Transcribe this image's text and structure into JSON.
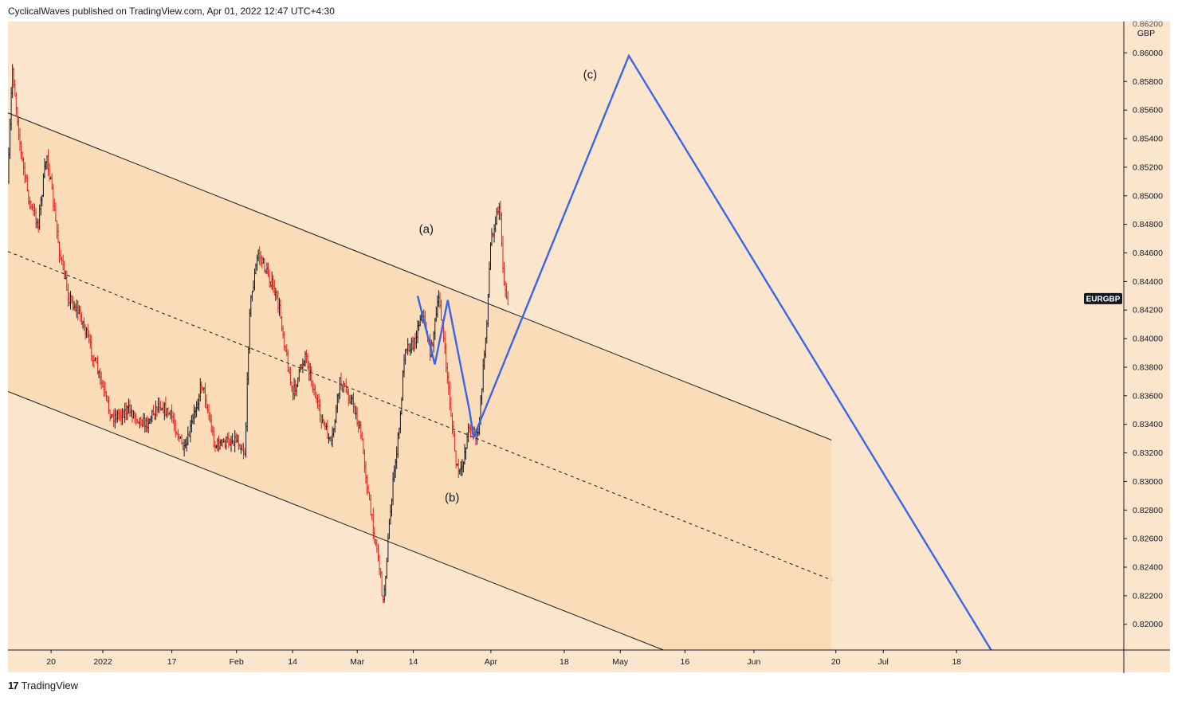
{
  "header": {
    "publisher_line": "CyclicalWaves published on TradingView.com, Apr 01, 2022 12:47 UTC+4:30"
  },
  "footer": {
    "brand": "TradingView"
  },
  "colors": {
    "plot_bg": "#fbe5cc",
    "channel_fill": "#fbdcb8",
    "candle_up": "#131722",
    "candle_down": "#e0201b",
    "wave_line": "#3a66e6",
    "axis_text": "#131722",
    "symbol_badge_bg": "#131722",
    "symbol_badge_text": "#ffffff"
  },
  "chart_data": {
    "type": "candlestick",
    "symbol": "EURGBP",
    "currency": "GBP",
    "ylim": [
      0.8182,
      0.8622
    ],
    "y_ticks": [
      "0.86200",
      "0.86000",
      "0.85800",
      "0.85600",
      "0.85400",
      "0.85200",
      "0.85000",
      "0.84800",
      "0.84600",
      "0.84400",
      "0.84200",
      "0.84000",
      "0.83800",
      "0.83600",
      "0.83400",
      "0.83200",
      "0.83000",
      "0.82800",
      "0.82600",
      "0.82400",
      "0.82200",
      "0.82000"
    ],
    "x_ticks": [
      {
        "label": "20",
        "date": "2021-12-20"
      },
      {
        "label": "2022",
        "date": "2022-01-01"
      },
      {
        "label": "17",
        "date": "2022-01-17"
      },
      {
        "label": "Feb",
        "date": "2022-02-01"
      },
      {
        "label": "14",
        "date": "2022-02-14"
      },
      {
        "label": "Mar",
        "date": "2022-03-01"
      },
      {
        "label": "14",
        "date": "2022-03-14"
      },
      {
        "label": "Apr",
        "date": "2022-04-01"
      },
      {
        "label": "18",
        "date": "2022-04-18"
      },
      {
        "label": "May",
        "date": "2022-05-01"
      },
      {
        "label": "16",
        "date": "2022-05-16"
      },
      {
        "label": "Jun",
        "date": "2022-06-01"
      },
      {
        "label": "20",
        "date": "2022-06-20"
      },
      {
        "label": "Jul",
        "date": "2022-07-01"
      },
      {
        "label": "18",
        "date": "2022-07-18"
      }
    ],
    "price_path": [
      {
        "date": "2021-12-10",
        "price": 0.851
      },
      {
        "date": "2021-12-11",
        "price": 0.859
      },
      {
        "date": "2021-12-13",
        "price": 0.853
      },
      {
        "date": "2021-12-15",
        "price": 0.8495
      },
      {
        "date": "2021-12-17",
        "price": 0.848
      },
      {
        "date": "2021-12-19",
        "price": 0.853
      },
      {
        "date": "2021-12-22",
        "price": 0.846
      },
      {
        "date": "2021-12-24",
        "price": 0.843
      },
      {
        "date": "2021-12-27",
        "price": 0.8415
      },
      {
        "date": "2021-12-30",
        "price": 0.8385
      },
      {
        "date": "2022-01-03",
        "price": 0.8345
      },
      {
        "date": "2022-01-07",
        "price": 0.835
      },
      {
        "date": "2022-01-11",
        "price": 0.834
      },
      {
        "date": "2022-01-14",
        "price": 0.8355
      },
      {
        "date": "2022-01-17",
        "price": 0.8345
      },
      {
        "date": "2022-01-20",
        "price": 0.832
      },
      {
        "date": "2022-01-24",
        "price": 0.837
      },
      {
        "date": "2022-01-27",
        "price": 0.8325
      },
      {
        "date": "2022-02-01",
        "price": 0.833
      },
      {
        "date": "2022-02-03",
        "price": 0.832
      },
      {
        "date": "2022-02-04",
        "price": 0.842
      },
      {
        "date": "2022-02-06",
        "price": 0.846
      },
      {
        "date": "2022-02-09",
        "price": 0.844
      },
      {
        "date": "2022-02-11",
        "price": 0.842
      },
      {
        "date": "2022-02-14",
        "price": 0.836
      },
      {
        "date": "2022-02-17",
        "price": 0.839
      },
      {
        "date": "2022-02-20",
        "price": 0.835
      },
      {
        "date": "2022-02-23",
        "price": 0.8325
      },
      {
        "date": "2022-02-25",
        "price": 0.837
      },
      {
        "date": "2022-02-28",
        "price": 0.8355
      },
      {
        "date": "2022-03-02",
        "price": 0.833
      },
      {
        "date": "2022-03-04",
        "price": 0.828
      },
      {
        "date": "2022-03-06",
        "price": 0.8245
      },
      {
        "date": "2022-03-07",
        "price": 0.8215
      },
      {
        "date": "2022-03-09",
        "price": 0.829
      },
      {
        "date": "2022-03-11",
        "price": 0.8345
      },
      {
        "date": "2022-03-12",
        "price": 0.8395
      },
      {
        "date": "2022-03-14",
        "price": 0.8395
      },
      {
        "date": "2022-03-16",
        "price": 0.842
      },
      {
        "date": "2022-03-18",
        "price": 0.839
      },
      {
        "date": "2022-03-20",
        "price": 0.843
      },
      {
        "date": "2022-03-22",
        "price": 0.837
      },
      {
        "date": "2022-03-24",
        "price": 0.831
      },
      {
        "date": "2022-03-25",
        "price": 0.8305
      },
      {
        "date": "2022-03-27",
        "price": 0.834
      },
      {
        "date": "2022-03-29",
        "price": 0.833
      },
      {
        "date": "2022-03-30",
        "price": 0.837
      },
      {
        "date": "2022-03-31",
        "price": 0.841
      },
      {
        "date": "2022-04-01",
        "price": 0.847
      },
      {
        "date": "2022-04-03",
        "price": 0.8495
      },
      {
        "date": "2022-04-04",
        "price": 0.844
      },
      {
        "date": "2022-04-05",
        "price": 0.8425
      }
    ],
    "channel": {
      "upper_line": [
        {
          "date": "2021-12-10",
          "price": 0.8558
        },
        {
          "date": "2022-06-19",
          "price": 0.8329
        }
      ],
      "middle_line_dashed": [
        {
          "date": "2021-12-10",
          "price": 0.8461
        },
        {
          "date": "2022-06-19",
          "price": 0.8231
        }
      ],
      "lower_line": [
        {
          "date": "2021-12-10",
          "price": 0.8363
        },
        {
          "date": "2022-05-11",
          "price": 0.8182
        }
      ],
      "fill_until": "2022-06-19"
    },
    "elliott_wave": [
      {
        "date": "2022-03-15",
        "price": 0.843
      },
      {
        "date": "2022-03-19",
        "price": 0.8382
      },
      {
        "date": "2022-03-22",
        "price": 0.8427
      },
      {
        "date": "2022-03-27",
        "price": 0.835
      },
      {
        "date": "2022-03-28",
        "price": 0.8331
      },
      {
        "date": "2022-05-03",
        "price": 0.8598
      },
      {
        "date": "2022-07-26",
        "price": 0.8182
      }
    ],
    "wave_labels": [
      {
        "text": "(a)",
        "date": "2022-03-17",
        "price": 0.8474
      },
      {
        "text": "(b)",
        "date": "2022-03-23",
        "price": 0.8286
      },
      {
        "text": "(c)",
        "date": "2022-04-24",
        "price": 0.8582
      }
    ],
    "last_price_badge": {
      "text": "EURGBP",
      "price": 0.8428
    }
  }
}
